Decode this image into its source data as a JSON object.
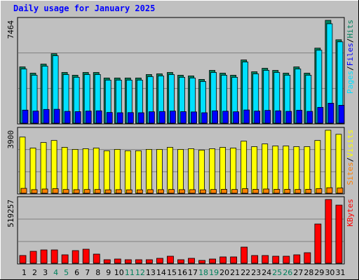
{
  "chart_data": {
    "type": "bar",
    "title": "Daily usage for January 2025",
    "categories": [
      "1",
      "2",
      "3",
      "4",
      "5",
      "6",
      "7",
      "8",
      "9",
      "10",
      "11",
      "12",
      "13",
      "14",
      "15",
      "16",
      "17",
      "18",
      "19",
      "20",
      "21",
      "22",
      "23",
      "24",
      "25",
      "26",
      "27",
      "28",
      "29",
      "30",
      "31"
    ],
    "category_colors": [
      "#000000",
      "#000000",
      "#000000",
      "#00805c",
      "#00805c",
      "#000000",
      "#000000",
      "#000000",
      "#000000",
      "#000000",
      "#00805c",
      "#00805c",
      "#000000",
      "#000000",
      "#000000",
      "#000000",
      "#000000",
      "#00805c",
      "#00805c",
      "#000000",
      "#000000",
      "#000000",
      "#000000",
      "#000000",
      "#00805c",
      "#00805c",
      "#000000",
      "#000000",
      "#000000",
      "#000000",
      "#000000"
    ],
    "legend_separator": "/",
    "panels": [
      {
        "ylim": [
          0,
          7464
        ],
        "yticks": [
          7464
        ],
        "series": [
          {
            "name": "Hits",
            "color": "#00805c",
            "values": [
              4085,
              3631,
              4287,
              5043,
              3681,
              3480,
              3681,
              3681,
              3278,
              3278,
              3278,
              3278,
              3530,
              3581,
              3681,
              3480,
              3429,
              3177,
              3833,
              3631,
              3480,
              4589,
              3732,
              3984,
              3833,
              3631,
              4085,
              3631,
              5446,
              7464,
              6052
            ]
          },
          {
            "name": "Pages",
            "color": "#00e0ff",
            "values": [
              3935,
              3481,
              4137,
              4893,
              3531,
              3330,
              3531,
              3531,
              3128,
              3128,
              3128,
              3128,
              3380,
              3431,
              3531,
              3330,
              3279,
              3027,
              3683,
              3481,
              3330,
              4439,
              3582,
              3834,
              3683,
              3481,
              3935,
              3481,
              5296,
              7214,
              5902
            ]
          },
          {
            "name": "Files",
            "color": "#0000ff",
            "values": [
              950,
              880,
              1000,
              1010,
              860,
              840,
              880,
              900,
              780,
              760,
              770,
              760,
              830,
              850,
              880,
              840,
              820,
              760,
              900,
              870,
              830,
              960,
              880,
              930,
              900,
              860,
              940,
              860,
              1150,
              1450,
              1300
            ]
          }
        ],
        "legend_order": [
          1,
          2,
          0
        ]
      },
      {
        "ylim": [
          0,
          3900
        ],
        "yticks": [
          3900
        ],
        "series": [
          {
            "name": "Visits",
            "color": "#ffff00",
            "values": [
              3476,
              2798,
              3137,
              3264,
              2840,
              2713,
              2755,
              2798,
              2628,
              2713,
              2628,
              2628,
              2713,
              2713,
              2840,
              2713,
              2755,
              2671,
              2755,
              2840,
              2798,
              3222,
              2882,
              3052,
              2925,
              2925,
              2882,
              2882,
              3264,
              3900,
              3646
            ]
          },
          {
            "name": "Sites",
            "color": "#ff8000",
            "values": [
              300,
              220,
              260,
              280,
              230,
              220,
              230,
              230,
              210,
              220,
              210,
              210,
              220,
              220,
              230,
              220,
              220,
              210,
              230,
              240,
              230,
              280,
              240,
              260,
              240,
              240,
              230,
              240,
              280,
              340,
              320
            ]
          }
        ],
        "legend_order": [
          1,
          0
        ]
      },
      {
        "ylim": [
          0,
          519257
        ],
        "yticks": [
          519257
        ],
        "series": [
          {
            "name": "KBytes",
            "color": "#ff0000",
            "values": [
              62767,
              97002,
              108414,
              108414,
              68473,
              102708,
              114121,
              74182,
              28530,
              34236,
              28530,
              28530,
              28530,
              39942,
              57061,
              28530,
              39942,
              22824,
              34236,
              51354,
              51354,
              131238,
              62767,
              62767,
              57061,
              57061,
              68473,
              85590,
              319546,
              519257,
              473598
            ]
          }
        ],
        "legend_order": [
          0
        ]
      }
    ]
  }
}
